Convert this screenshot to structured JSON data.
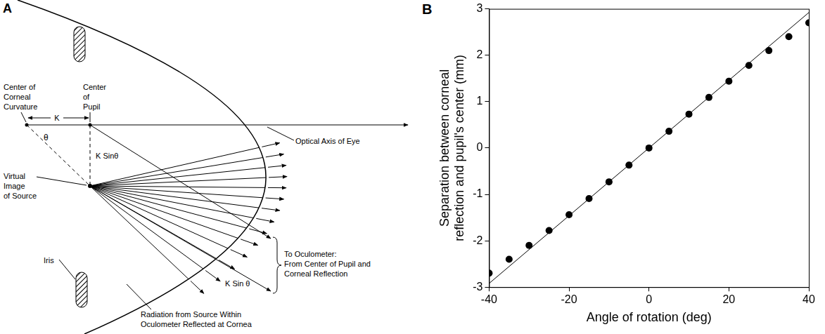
{
  "diagram": {
    "panel_label": "A",
    "labels": {
      "corneal_center": [
        "Center of",
        "Corneal",
        "Curvature"
      ],
      "pupil_center": [
        "Center",
        "of",
        "Pupil"
      ],
      "k": "K",
      "theta": "θ",
      "k_sin_theta_inner": "K Sinθ",
      "virtual_image": [
        "Virtual",
        "Image",
        "of Source"
      ],
      "optical_axis": "Optical Axis of Eye",
      "iris": "Iris",
      "k_sin_theta_outer": "K Sin θ",
      "oculometer": [
        "To Oculometer:",
        "From Center of Pupil and",
        "Corneal Reflection"
      ],
      "radiation": [
        "Radiation from Source Within",
        "Oculometer Reflected at Cornea"
      ]
    }
  },
  "chart_data": {
    "type": "scatter",
    "panel_label": "B",
    "x_label": "Angle of rotation (deg)",
    "y_label": "Separation between corneal reflection and pupil's center (mm)",
    "xlim": [
      -40,
      40
    ],
    "xticks": [
      -40,
      -20,
      0,
      20,
      40
    ],
    "ylim": [
      -3,
      3
    ],
    "yticks": [
      -3,
      -2,
      -1,
      0,
      1,
      2,
      3
    ],
    "grid": false,
    "series": [
      {
        "type": "scatter",
        "marker": "circle",
        "color": "#000000",
        "x": [
          -40,
          -35,
          -30,
          -25,
          -20,
          -15,
          -10,
          -5,
          0,
          5,
          10,
          15,
          20,
          25,
          30,
          35,
          40
        ],
        "values": [
          -2.7,
          -2.4,
          -2.1,
          -1.78,
          -1.44,
          -1.09,
          -0.73,
          -0.37,
          0,
          0.36,
          0.73,
          1.09,
          1.44,
          1.78,
          2.1,
          2.4,
          2.7
        ]
      },
      {
        "type": "line",
        "line_style": "solid",
        "color": "#000000",
        "x": [
          -40,
          40
        ],
        "values": [
          -2.92,
          2.92
        ]
      }
    ]
  }
}
